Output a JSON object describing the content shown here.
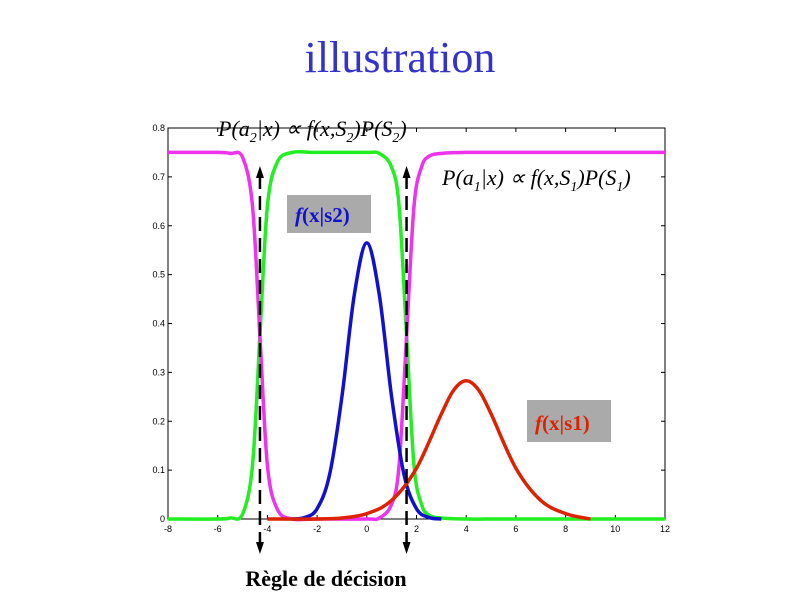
{
  "title": "illustration",
  "footer": "Règle de décision",
  "colors": {
    "title": "#3333cc",
    "green": "#22ee22",
    "magenta": "#ee33ee",
    "blue": "#1111cc",
    "red": "#dd2200",
    "tag_bg": "#aaaaaa"
  },
  "annotations": {
    "formula_top": {
      "P1": "P(a",
      "s1": "2",
      "P2": "|x) ∝ f(x,S",
      "s2": "2",
      "P3": ")P(S",
      "s3": "2",
      "P4": ")"
    },
    "formula_right": {
      "P1": "P(a",
      "s1": "1",
      "P2": "|x) ∝ f(x,S",
      "s2": "1",
      "P3": ")P(S",
      "s3": "1",
      "P4": ")"
    },
    "tag_s2": {
      "f": "f",
      "rest": "(x|s2)"
    },
    "tag_s1": {
      "f": "f",
      "rest": "(x|s1)"
    }
  },
  "chart_data": {
    "type": "line",
    "title": "illustration",
    "xlabel": "",
    "ylabel": "",
    "xlim": [
      -8,
      12
    ],
    "ylim": [
      0,
      0.8
    ],
    "x_ticks": [
      -8,
      -6,
      -4,
      -2,
      0,
      2,
      4,
      6,
      8,
      10,
      12
    ],
    "y_ticks": [
      0,
      0.1,
      0.2,
      0.3,
      0.4,
      0.5,
      0.6,
      0.7,
      0.8
    ],
    "grid": false,
    "decision_thresholds": [
      -4.3,
      1.6
    ],
    "series": [
      {
        "name": "f(x|s2)",
        "color": "#1111cc",
        "x": [
          -3,
          -2.5,
          -2,
          -1.5,
          -1,
          -0.5,
          0,
          0.5,
          1,
          1.5,
          2,
          2.5,
          3
        ],
        "y": [
          0.0,
          0.003,
          0.021,
          0.09,
          0.25,
          0.46,
          0.565,
          0.46,
          0.25,
          0.09,
          0.021,
          0.003,
          0.0
        ]
      },
      {
        "name": "f(x|s1)",
        "color": "#dd2200",
        "x": [
          -4,
          -2,
          -1,
          0,
          1,
          2,
          3,
          3.5,
          4,
          4.5,
          5,
          6,
          7,
          8,
          9
        ],
        "y": [
          0.0,
          0.0,
          0.002,
          0.011,
          0.038,
          0.104,
          0.215,
          0.264,
          0.283,
          0.264,
          0.215,
          0.104,
          0.038,
          0.011,
          0.0
        ]
      },
      {
        "name": "P(a2|x) ∝ f(x,S2)P(S2)",
        "color": "#22ee22",
        "x": [
          -8,
          -6,
          -5.5,
          -5,
          -4.6,
          -4.3,
          -4,
          -3.6,
          -3,
          -2,
          0,
          0.5,
          1,
          1.3,
          1.6,
          1.9,
          2.2,
          2.5,
          3,
          4,
          6,
          12
        ],
        "y": [
          0.0,
          0.0,
          0.002,
          0.01,
          0.11,
          0.375,
          0.64,
          0.73,
          0.75,
          0.75,
          0.75,
          0.748,
          0.72,
          0.64,
          0.375,
          0.11,
          0.03,
          0.008,
          0.002,
          0.0,
          0.0,
          0.0
        ]
      },
      {
        "name": "P(a1|x) ∝ f(x,S1)P(S1)",
        "color": "#ee33ee",
        "x": [
          -8,
          -6,
          -5.5,
          -5,
          -4.6,
          -4.3,
          -4,
          -3.6,
          -3,
          -2,
          0,
          0.5,
          1,
          1.3,
          1.6,
          1.9,
          2.2,
          2.5,
          3,
          4,
          6,
          12
        ],
        "y": [
          0.75,
          0.75,
          0.748,
          0.74,
          0.64,
          0.375,
          0.11,
          0.02,
          0.0,
          0.0,
          0.0,
          0.002,
          0.03,
          0.11,
          0.375,
          0.64,
          0.72,
          0.742,
          0.748,
          0.75,
          0.75,
          0.75
        ]
      }
    ]
  }
}
